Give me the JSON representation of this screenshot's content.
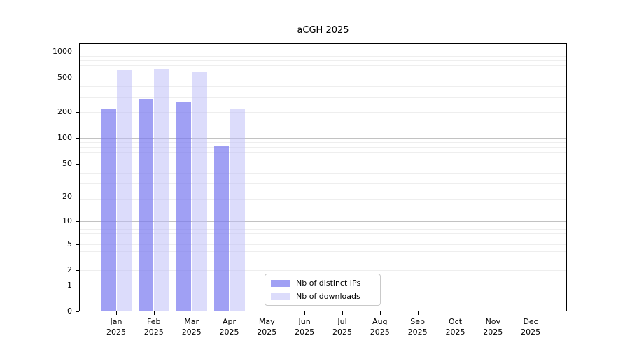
{
  "chart_data": {
    "type": "bar",
    "title": "aCGH 2025",
    "categories": [
      "Jan 2025",
      "Feb 2025",
      "Mar 2025",
      "Apr 2025",
      "May 2025",
      "Jun 2025",
      "Jul 2025",
      "Aug 2025",
      "Sep 2025",
      "Oct 2025",
      "Nov 2025",
      "Dec 2025"
    ],
    "series": [
      {
        "name": "Nb of distinct IPs",
        "color": "#7878f0",
        "alpha": 0.7,
        "values": [
          220,
          280,
          260,
          82,
          null,
          null,
          null,
          null,
          null,
          null,
          null,
          null
        ]
      },
      {
        "name": "Nb of downloads",
        "color": "#b9b9f8",
        "alpha": 0.5,
        "values": [
          620,
          625,
          580,
          220,
          null,
          null,
          null,
          null,
          null,
          null,
          null,
          null
        ]
      }
    ],
    "yticks": [
      0,
      1,
      2,
      5,
      10,
      20,
      50,
      100,
      200,
      500,
      1000
    ],
    "scale": "log10(value+1)",
    "ylim": [
      0,
      1247
    ],
    "grid": {
      "on": true,
      "major_values": [
        1,
        10,
        100,
        1000
      ],
      "major_color": "#c2c2c2",
      "minor_color": "#eeeeee"
    },
    "axis_color": "#000000",
    "legend": {
      "position": "lower-center",
      "border_color": "#c9c9c9",
      "background": "#ffffff"
    }
  }
}
